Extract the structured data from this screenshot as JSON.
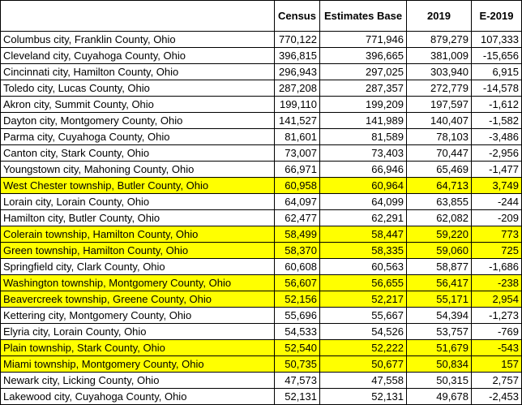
{
  "colors": {
    "highlight": "#ffff00",
    "grid": "#000000"
  },
  "headers": [
    "",
    "Census",
    "Estimates Base",
    "2019",
    "E-2019"
  ],
  "rows": [
    {
      "name": "Columbus city, Franklin County, Ohio",
      "census": "770,122",
      "base": "771,946",
      "y2019": "879,279",
      "e2019": "107,333",
      "highlighted": false
    },
    {
      "name": "Cleveland city, Cuyahoga County, Ohio",
      "census": "396,815",
      "base": "396,665",
      "y2019": "381,009",
      "e2019": "-15,656",
      "highlighted": false
    },
    {
      "name": "Cincinnati city, Hamilton County, Ohio",
      "census": "296,943",
      "base": "297,025",
      "y2019": "303,940",
      "e2019": "6,915",
      "highlighted": false
    },
    {
      "name": "Toledo city, Lucas County, Ohio",
      "census": "287,208",
      "base": "287,357",
      "y2019": "272,779",
      "e2019": "-14,578",
      "highlighted": false
    },
    {
      "name": "Akron city, Summit County, Ohio",
      "census": "199,110",
      "base": "199,209",
      "y2019": "197,597",
      "e2019": "-1,612",
      "highlighted": false
    },
    {
      "name": "Dayton city, Montgomery County, Ohio",
      "census": "141,527",
      "base": "141,989",
      "y2019": "140,407",
      "e2019": "-1,582",
      "highlighted": false
    },
    {
      "name": "Parma city, Cuyahoga County, Ohio",
      "census": "81,601",
      "base": "81,589",
      "y2019": "78,103",
      "e2019": "-3,486",
      "highlighted": false
    },
    {
      "name": "Canton city, Stark County, Ohio",
      "census": "73,007",
      "base": "73,403",
      "y2019": "70,447",
      "e2019": "-2,956",
      "highlighted": false
    },
    {
      "name": "Youngstown city, Mahoning County, Ohio",
      "census": "66,971",
      "base": "66,946",
      "y2019": "65,469",
      "e2019": "-1,477",
      "highlighted": false
    },
    {
      "name": "West Chester township, Butler County, Ohio",
      "census": "60,958",
      "base": "60,964",
      "y2019": "64,713",
      "e2019": "3,749",
      "highlighted": true
    },
    {
      "name": "Lorain city, Lorain County, Ohio",
      "census": "64,097",
      "base": "64,099",
      "y2019": "63,855",
      "e2019": "-244",
      "highlighted": false
    },
    {
      "name": "Hamilton city, Butler County, Ohio",
      "census": "62,477",
      "base": "62,291",
      "y2019": "62,082",
      "e2019": "-209",
      "highlighted": false
    },
    {
      "name": "Colerain township, Hamilton County, Ohio",
      "census": "58,499",
      "base": "58,447",
      "y2019": "59,220",
      "e2019": "773",
      "highlighted": true
    },
    {
      "name": "Green township, Hamilton County, Ohio",
      "census": "58,370",
      "base": "58,335",
      "y2019": "59,060",
      "e2019": "725",
      "highlighted": true
    },
    {
      "name": "Springfield city, Clark County, Ohio",
      "census": "60,608",
      "base": "60,563",
      "y2019": "58,877",
      "e2019": "-1,686",
      "highlighted": false
    },
    {
      "name": "Washington township, Montgomery County, Ohio",
      "census": "56,607",
      "base": "56,655",
      "y2019": "56,417",
      "e2019": "-238",
      "highlighted": true
    },
    {
      "name": "Beavercreek township, Greene County, Ohio",
      "census": "52,156",
      "base": "52,217",
      "y2019": "55,171",
      "e2019": "2,954",
      "highlighted": true
    },
    {
      "name": "Kettering city, Montgomery County, Ohio",
      "census": "55,696",
      "base": "55,667",
      "y2019": "54,394",
      "e2019": "-1,273",
      "highlighted": false
    },
    {
      "name": "Elyria city, Lorain County, Ohio",
      "census": "54,533",
      "base": "54,526",
      "y2019": "53,757",
      "e2019": "-769",
      "highlighted": false
    },
    {
      "name": "Plain township, Stark County, Ohio",
      "census": "52,540",
      "base": "52,222",
      "y2019": "51,679",
      "e2019": "-543",
      "highlighted": true
    },
    {
      "name": "Miami township, Montgomery County, Ohio",
      "census": "50,735",
      "base": "50,677",
      "y2019": "50,834",
      "e2019": "157",
      "highlighted": true
    },
    {
      "name": "Newark city, Licking County, Ohio",
      "census": "47,573",
      "base": "47,558",
      "y2019": "50,315",
      "e2019": "2,757",
      "highlighted": false
    },
    {
      "name": "Lakewood city, Cuyahoga County, Ohio",
      "census": "52,131",
      "base": "52,131",
      "y2019": "49,678",
      "e2019": "-2,453",
      "highlighted": false
    }
  ]
}
